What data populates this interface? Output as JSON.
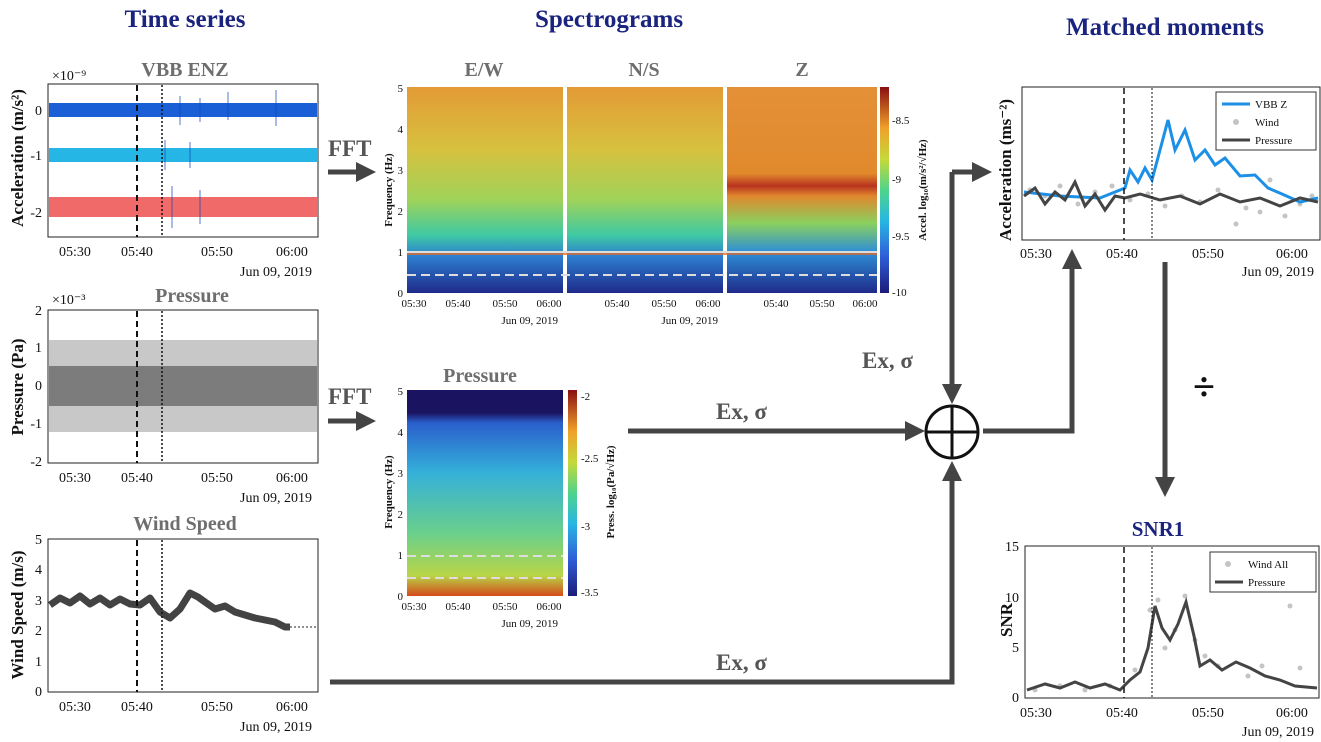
{
  "headers": {
    "time_series": "Time series",
    "spectrograms": "Spectrograms",
    "matched_moments": "Matched moments"
  },
  "panels": {
    "vbb": {
      "title": "VBB ENZ",
      "ylabel": "Acceleration (m/s²)",
      "exponent": "×10⁻⁹",
      "yticks": [
        "0",
        "-1",
        "-2"
      ],
      "xticks": [
        "05:30",
        "05:40",
        "05:50",
        "06:00"
      ],
      "date": "Jun 09, 2019",
      "colors": [
        "#1a5fd6",
        "#25b6e6",
        "#f06a6a"
      ]
    },
    "pressure": {
      "title": "Pressure",
      "ylabel": "Pressure (Pa)",
      "exponent": "×10⁻³",
      "yticks": [
        "2",
        "1",
        "0",
        "-1",
        "-2"
      ],
      "xticks": [
        "05:30",
        "05:40",
        "05:50",
        "06:00"
      ],
      "date": "Jun 09, 2019"
    },
    "wind": {
      "title": "Wind Speed",
      "ylabel": "Wind Speed (m/s)",
      "yticks": [
        "5",
        "4",
        "3",
        "2",
        "1",
        "0"
      ],
      "xticks": [
        "05:30",
        "05:40",
        "05:50",
        "06:00"
      ],
      "date": "Jun 09, 2019"
    },
    "spec_acc": {
      "titles": [
        "E/W",
        "N/S",
        "Z"
      ],
      "ylabel": "Frequency (Hz)",
      "yticks": [
        "5",
        "4",
        "3",
        "2",
        "1",
        "0"
      ],
      "xticks_first": [
        "05:30",
        "05:40",
        "05:50",
        "06:00"
      ],
      "xticks_other": [
        "05:40",
        "05:50",
        "06:00"
      ],
      "date": "Jun 09, 2019",
      "cbar_label": "Accel. log₁₀(m/s²/√Hz)",
      "cbar_ticks": [
        "-8.5",
        "-9",
        "-9.5",
        "-10"
      ]
    },
    "spec_press": {
      "title": "Pressure",
      "ylabel": "Frequency (Hz)",
      "yticks": [
        "5",
        "4",
        "3",
        "2",
        "1",
        "0"
      ],
      "xticks": [
        "05:30",
        "05:40",
        "05:50",
        "06:00"
      ],
      "date": "Jun 09, 2019",
      "cbar_label": "Press. log₁₀(Pa/√Hz)",
      "cbar_ticks": [
        "-2",
        "-2.5",
        "-3",
        "-3.5"
      ]
    },
    "matched": {
      "ylabel": "Acceleration (ms⁻²)",
      "xticks": [
        "05:30",
        "05:40",
        "05:50",
        "06:00"
      ],
      "date": "Jun 09, 2019",
      "legend": [
        "VBB Z",
        "Wind",
        "Pressure"
      ]
    },
    "snr": {
      "title": "SNR1",
      "ylabel": "SNR",
      "yticks": [
        "15",
        "10",
        "5",
        "0"
      ],
      "xticks": [
        "05:30",
        "05:40",
        "05:50",
        "06:00"
      ],
      "date": "Jun 09, 2019",
      "legend": [
        "Wind All",
        "Pressure"
      ]
    }
  },
  "flow": {
    "fft1": "FFT",
    "fft2": "FFT",
    "ex1": "Ex, σ",
    "ex2": "Ex, σ",
    "ex3": "Ex, σ",
    "divide": "÷"
  }
}
